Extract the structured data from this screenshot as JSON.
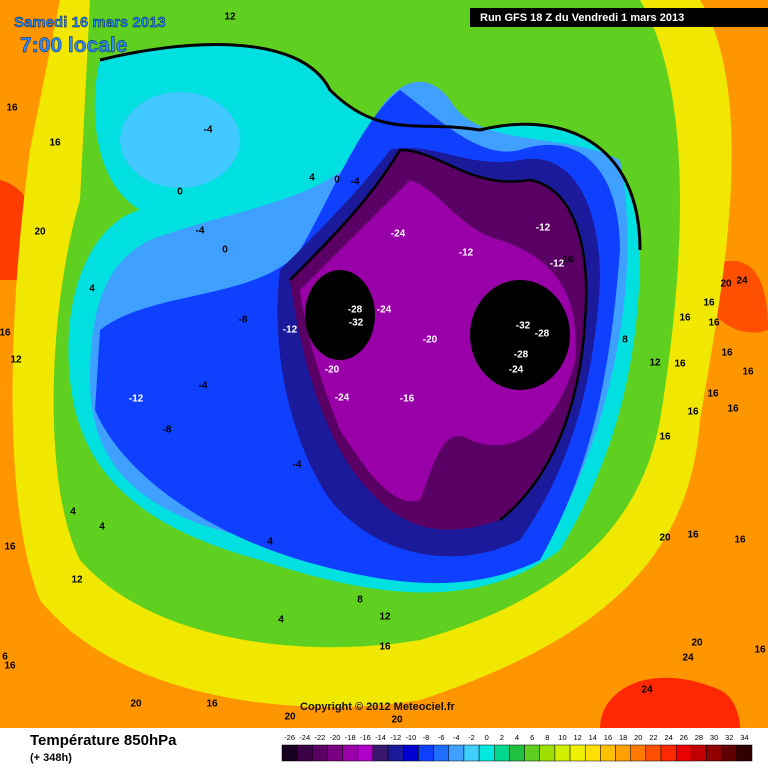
{
  "header": {
    "date": "Samedi 16 mars 2013",
    "time": "7:00 locale",
    "run": "Run GFS 18 Z du Vendredi 1 mars 2013"
  },
  "copyright": "Copyright © 2012 Meteociel.fr",
  "footer": {
    "title": "Température 850hPa",
    "lead": "(+ 348h)"
  },
  "map": {
    "contour_labels": [
      12,
      16,
      16,
      -4,
      0,
      4,
      0,
      -4,
      -4,
      0,
      20,
      4,
      16,
      12,
      -8,
      -12,
      -24,
      -12,
      -12,
      -12,
      16,
      -28,
      -32,
      -24,
      -20,
      -32,
      -28,
      -28,
      -24,
      20,
      24,
      16,
      16,
      16,
      8,
      12,
      16,
      -20,
      -4,
      -12,
      -24,
      -16,
      -8,
      16,
      16,
      16,
      16,
      16,
      16,
      -4,
      4,
      4,
      4,
      20,
      16,
      16,
      16,
      12,
      8,
      12,
      4,
      16,
      16,
      6,
      16,
      20,
      24,
      24,
      20,
      16,
      20,
      20
    ],
    "colorbar": {
      "ticks": [
        -26,
        -24,
        -22,
        -20,
        -18,
        -16,
        -14,
        -12,
        -10,
        -8,
        -6,
        -4,
        -2,
        0,
        2,
        4,
        6,
        8,
        10,
        12,
        14,
        16,
        18,
        20,
        22,
        24,
        26,
        28,
        30,
        32,
        34
      ],
      "colors": [
        "#1a0020",
        "#3c0046",
        "#5a0064",
        "#7a0082",
        "#9a00a8",
        "#b000c8",
        "#3a1870",
        "#1a1a9a",
        "#0000d0",
        "#1040ff",
        "#2070ff",
        "#40a0ff",
        "#40d0ff",
        "#00e8e0",
        "#00d890",
        "#20c040",
        "#60d020",
        "#a0e000",
        "#d0f000",
        "#f0f000",
        "#ffe000",
        "#ffc000",
        "#ffa000",
        "#ff7800",
        "#ff5000",
        "#ff2800",
        "#e80000",
        "#c00000",
        "#900000",
        "#600000",
        "#300000"
      ]
    }
  }
}
